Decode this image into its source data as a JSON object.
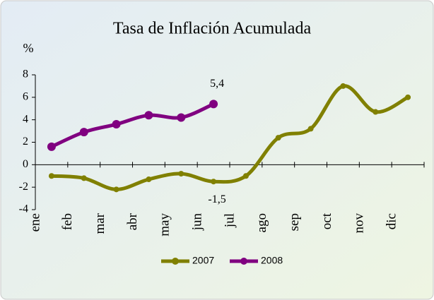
{
  "chart_data": {
    "type": "line",
    "title": "Tasa de Inflación Acumulada",
    "y_label": "%",
    "categories": [
      "ene",
      "feb",
      "mar",
      "abr",
      "may",
      "jun",
      "jul",
      "ago",
      "sep",
      "oct",
      "nov",
      "dic"
    ],
    "series": [
      {
        "name": "2007",
        "color": "#808000",
        "values": [
          -1.0,
          -1.2,
          -2.2,
          -1.3,
          -0.8,
          -1.5,
          -1.0,
          2.4,
          3.2,
          7.0,
          4.7,
          6.0
        ],
        "value_labels": [
          null,
          null,
          null,
          null,
          null,
          "-1,5",
          null,
          null,
          null,
          null,
          null,
          null
        ]
      },
      {
        "name": "2008",
        "color": "#800080",
        "values": [
          1.6,
          2.9,
          3.6,
          4.4,
          4.2,
          5.4,
          null,
          null,
          null,
          null,
          null,
          null
        ],
        "value_labels": [
          null,
          null,
          null,
          null,
          null,
          "5,4",
          null,
          null,
          null,
          null,
          null,
          null
        ]
      }
    ],
    "ylim": [
      -4,
      8
    ],
    "yticks": [
      -4,
      -2,
      0,
      2,
      4,
      6,
      8
    ],
    "legend": "bottom"
  }
}
